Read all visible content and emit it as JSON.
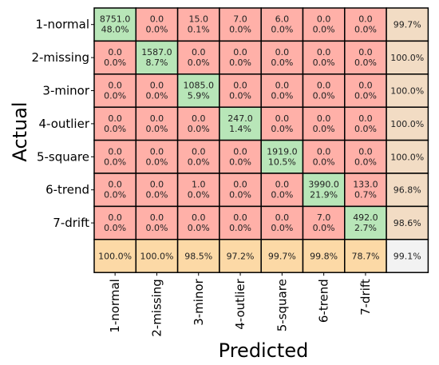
{
  "chart_data": {
    "type": "heatmap",
    "xlabel": "Predicted",
    "ylabel": "Actual",
    "row_labels": [
      "1-normal",
      "2-missing",
      "3-minor",
      "4-outlier",
      "5-square",
      "6-trend",
      "7-drift"
    ],
    "col_labels": [
      "1-normal",
      "2-missing",
      "3-minor",
      "4-outlier",
      "5-square",
      "6-trend",
      "7-drift"
    ],
    "counts": [
      [
        "8751.0",
        "0.0",
        "15.0",
        "7.0",
        "6.0",
        "0.0",
        "0.0"
      ],
      [
        "0.0",
        "1587.0",
        "0.0",
        "0.0",
        "0.0",
        "0.0",
        "0.0"
      ],
      [
        "0.0",
        "0.0",
        "1085.0",
        "0.0",
        "0.0",
        "0.0",
        "0.0"
      ],
      [
        "0.0",
        "0.0",
        "0.0",
        "247.0",
        "0.0",
        "0.0",
        "0.0"
      ],
      [
        "0.0",
        "0.0",
        "0.0",
        "0.0",
        "1919.0",
        "0.0",
        "0.0"
      ],
      [
        "0.0",
        "0.0",
        "1.0",
        "0.0",
        "0.0",
        "3990.0",
        "133.0"
      ],
      [
        "0.0",
        "0.0",
        "0.0",
        "0.0",
        "0.0",
        "7.0",
        "492.0"
      ]
    ],
    "percents": [
      [
        "48.0%",
        "0.0%",
        "0.1%",
        "0.0%",
        "0.0%",
        "0.0%",
        "0.0%"
      ],
      [
        "0.0%",
        "8.7%",
        "0.0%",
        "0.0%",
        "0.0%",
        "0.0%",
        "0.0%"
      ],
      [
        "0.0%",
        "0.0%",
        "5.9%",
        "0.0%",
        "0.0%",
        "0.0%",
        "0.0%"
      ],
      [
        "0.0%",
        "0.0%",
        "0.0%",
        "1.4%",
        "0.0%",
        "0.0%",
        "0.0%"
      ],
      [
        "0.0%",
        "0.0%",
        "0.0%",
        "0.0%",
        "10.5%",
        "0.0%",
        "0.0%"
      ],
      [
        "0.0%",
        "0.0%",
        "0.0%",
        "0.0%",
        "0.0%",
        "21.9%",
        "0.7%"
      ],
      [
        "0.0%",
        "0.0%",
        "0.0%",
        "0.0%",
        "0.0%",
        "0.0%",
        "2.7%"
      ]
    ],
    "row_recall": [
      "99.7%",
      "100.0%",
      "100.0%",
      "100.0%",
      "100.0%",
      "96.8%",
      "98.6%"
    ],
    "col_precision": [
      "100.0%",
      "100.0%",
      "98.5%",
      "97.2%",
      "99.7%",
      "99.8%",
      "78.7%"
    ],
    "overall": "99.1%",
    "colors": {
      "correct": "#b8e6b8",
      "incorrect": "#ffb0a8",
      "row_summary": "#f2dcc4",
      "col_summary": "#fcd9a6",
      "overall": "#f2f2f2",
      "border": "#000000"
    }
  }
}
